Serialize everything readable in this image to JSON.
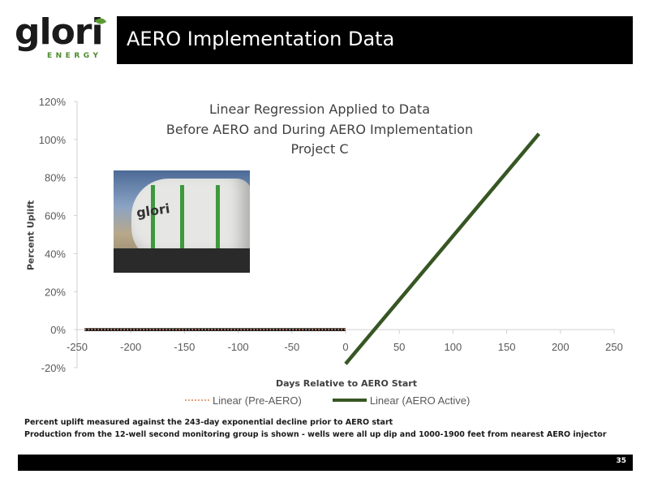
{
  "logo": {
    "word": "glori",
    "sub": "ENERGY"
  },
  "slide": {
    "title": "AERO Implementation Data",
    "page_number": "35"
  },
  "chart_data": {
    "type": "line",
    "title_lines": [
      "Linear Regression Applied to Data",
      "Before AERO and During AERO Implementation",
      "Project C"
    ],
    "xlabel": "Days Relative to AERO Start",
    "ylabel": "Percent Uplift",
    "xlim": [
      -250,
      250
    ],
    "ylim": [
      -0.2,
      1.2
    ],
    "x_ticks": [
      -250,
      -200,
      -150,
      -100,
      -50,
      0,
      50,
      100,
      150,
      200,
      250
    ],
    "x_tick_labels": [
      "-250",
      "-200",
      "-150",
      "-100",
      "-50",
      "0",
      "50",
      "100",
      "150",
      "200",
      "250"
    ],
    "y_ticks": [
      -0.2,
      0,
      0.2,
      0.4,
      0.6,
      0.8,
      1.0,
      1.2
    ],
    "y_tick_labels": [
      "-20%",
      "0%",
      "20%",
      "40%",
      "60%",
      "80%",
      "100%",
      "120%"
    ],
    "grid": false,
    "legend_position": "bottom",
    "series": [
      {
        "name": "Linear (Pre-AERO)",
        "x": [
          -243,
          0
        ],
        "y": [
          0,
          0
        ],
        "color": "#e8a07a",
        "style": "dotted"
      },
      {
        "name": "Linear (AERO Active)",
        "x": [
          0,
          180
        ],
        "y": [
          -0.18,
          1.03
        ],
        "color": "#375623",
        "style": "solid"
      }
    ],
    "baseline_series": {
      "x": [
        -243,
        0
      ],
      "y": [
        0,
        0
      ],
      "color": "#000000"
    }
  },
  "legend": {
    "pre_label": "Linear (Pre-AERO)",
    "active_label": "Linear (AERO Active)"
  },
  "notes": [
    "Percent uplift measured against the 243-day exponential decline prior to AERO start",
    "Production from the 12-well second monitoring group is shown - wells were all up dip and 1000-1900 feet from nearest AERO injector"
  ],
  "photo": {
    "tank_text": "glori"
  }
}
